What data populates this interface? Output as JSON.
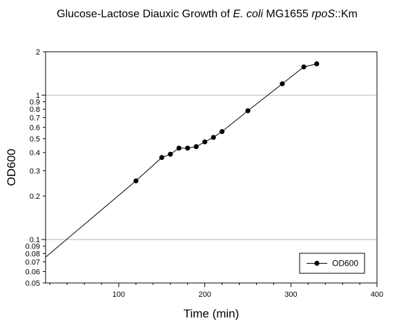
{
  "chart_data": {
    "type": "line",
    "title": {
      "prefix": "Glucose-Lactose Diauxic Growth of ",
      "species": "E. coli",
      "strain": " MG1655 ",
      "gene": "rpoS",
      "suffix": "::Km"
    },
    "xlabel": "Time (min)",
    "ylabel": "OD600",
    "xlim": [
      15,
      400
    ],
    "ylim": [
      0.05,
      2
    ],
    "yscale": "log",
    "x_ticks": [
      100,
      200,
      300,
      400
    ],
    "y_ticks_labeled": [
      0.05,
      0.06,
      0.07,
      0.08,
      0.09,
      0.1,
      0.2,
      0.3,
      0.4,
      0.5,
      0.6,
      0.7,
      0.8,
      0.9,
      1,
      2
    ],
    "y_gridlines": [
      0.1,
      1
    ],
    "grid": "horizontal at decades",
    "legend": {
      "placement": "bottom-right",
      "entries": [
        "OD600"
      ]
    },
    "series": [
      {
        "name": "OD600",
        "color": "#000000",
        "x": [
          120,
          150,
          160,
          170,
          180,
          190,
          200,
          210,
          220,
          250,
          290,
          315,
          330
        ],
        "y": [
          0.255,
          0.37,
          0.39,
          0.43,
          0.43,
          0.44,
          0.475,
          0.51,
          0.56,
          0.78,
          1.2,
          1.57,
          1.65
        ],
        "markers": true
      }
    ],
    "fit_line": {
      "x": [
        15,
        120
      ],
      "y": [
        0.0755,
        0.255
      ]
    }
  }
}
